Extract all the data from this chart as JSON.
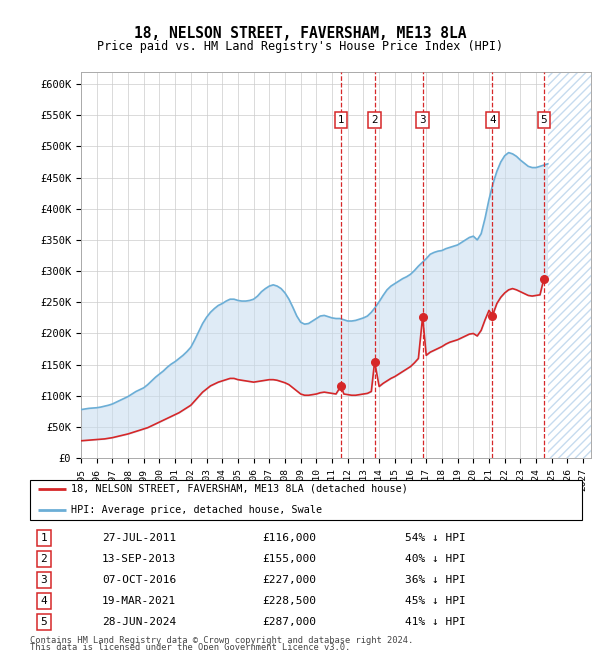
{
  "title": "18, NELSON STREET, FAVERSHAM, ME13 8LA",
  "subtitle": "Price paid vs. HM Land Registry's House Price Index (HPI)",
  "hpi_label": "HPI: Average price, detached house, Swale",
  "price_label": "18, NELSON STREET, FAVERSHAM, ME13 8LA (detached house)",
  "footer1": "Contains HM Land Registry data © Crown copyright and database right 2024.",
  "footer2": "This data is licensed under the Open Government Licence v3.0.",
  "hpi_color": "#6baed6",
  "price_color": "#d62728",
  "sale_marker_color": "#d62728",
  "sale_vline_color": "#d62728",
  "fill_color": "#c6dbef",
  "ylim": [
    0,
    620000
  ],
  "yticks": [
    0,
    50000,
    100000,
    150000,
    200000,
    250000,
    300000,
    350000,
    400000,
    450000,
    500000,
    550000,
    600000
  ],
  "ytick_labels": [
    "£0",
    "£50K",
    "£100K",
    "£150K",
    "£200K",
    "£250K",
    "£300K",
    "£350K",
    "£400K",
    "£450K",
    "£500K",
    "£550K",
    "£600K"
  ],
  "xlim_start": 1995.0,
  "xlim_end": 2027.5,
  "hatch_start": 2024.75,
  "sales": [
    {
      "num": 1,
      "date": 2011.57,
      "price": 116000,
      "label": "27-JUL-2011",
      "pct": "54% ↓ HPI"
    },
    {
      "num": 2,
      "date": 2013.71,
      "price": 155000,
      "label": "13-SEP-2013",
      "pct": "40% ↓ HPI"
    },
    {
      "num": 3,
      "date": 2016.77,
      "price": 227000,
      "label": "07-OCT-2016",
      "pct": "36% ↓ HPI"
    },
    {
      "num": 4,
      "date": 2021.22,
      "price": 228500,
      "label": "19-MAR-2021",
      "pct": "45% ↓ HPI"
    },
    {
      "num": 5,
      "date": 2024.49,
      "price": 287000,
      "label": "28-JUN-2024",
      "pct": "41% ↓ HPI"
    }
  ],
  "hpi_data": {
    "years": [
      1995.0,
      1995.25,
      1995.5,
      1995.75,
      1996.0,
      1996.25,
      1996.5,
      1996.75,
      1997.0,
      1997.25,
      1997.5,
      1997.75,
      1998.0,
      1998.25,
      1998.5,
      1998.75,
      1999.0,
      1999.25,
      1999.5,
      1999.75,
      2000.0,
      2000.25,
      2000.5,
      2000.75,
      2001.0,
      2001.25,
      2001.5,
      2001.75,
      2002.0,
      2002.25,
      2002.5,
      2002.75,
      2003.0,
      2003.25,
      2003.5,
      2003.75,
      2004.0,
      2004.25,
      2004.5,
      2004.75,
      2005.0,
      2005.25,
      2005.5,
      2005.75,
      2006.0,
      2006.25,
      2006.5,
      2006.75,
      2007.0,
      2007.25,
      2007.5,
      2007.75,
      2008.0,
      2008.25,
      2008.5,
      2008.75,
      2009.0,
      2009.25,
      2009.5,
      2009.75,
      2010.0,
      2010.25,
      2010.5,
      2010.75,
      2011.0,
      2011.25,
      2011.5,
      2011.75,
      2012.0,
      2012.25,
      2012.5,
      2012.75,
      2013.0,
      2013.25,
      2013.5,
      2013.75,
      2014.0,
      2014.25,
      2014.5,
      2014.75,
      2015.0,
      2015.25,
      2015.5,
      2015.75,
      2016.0,
      2016.25,
      2016.5,
      2016.75,
      2017.0,
      2017.25,
      2017.5,
      2017.75,
      2018.0,
      2018.25,
      2018.5,
      2018.75,
      2019.0,
      2019.25,
      2019.5,
      2019.75,
      2020.0,
      2020.25,
      2020.5,
      2020.75,
      2021.0,
      2021.25,
      2021.5,
      2021.75,
      2022.0,
      2022.25,
      2022.5,
      2022.75,
      2023.0,
      2023.25,
      2023.5,
      2023.75,
      2024.0,
      2024.25,
      2024.5,
      2024.75
    ],
    "values": [
      78000,
      79000,
      80000,
      80500,
      81000,
      82000,
      83500,
      85000,
      87000,
      90000,
      93000,
      96000,
      99000,
      103000,
      107000,
      110000,
      113000,
      118000,
      124000,
      130000,
      135000,
      140000,
      146000,
      151000,
      155000,
      160000,
      165000,
      171000,
      178000,
      190000,
      203000,
      216000,
      226000,
      234000,
      240000,
      245000,
      248000,
      252000,
      255000,
      255000,
      253000,
      252000,
      252000,
      253000,
      255000,
      260000,
      267000,
      272000,
      276000,
      278000,
      276000,
      272000,
      265000,
      255000,
      242000,
      228000,
      218000,
      215000,
      216000,
      220000,
      224000,
      228000,
      229000,
      227000,
      225000,
      224000,
      224000,
      222000,
      220000,
      220000,
      221000,
      223000,
      225000,
      228000,
      234000,
      242000,
      251000,
      261000,
      270000,
      276000,
      280000,
      284000,
      288000,
      291000,
      295000,
      301000,
      308000,
      314000,
      320000,
      327000,
      330000,
      332000,
      333000,
      336000,
      338000,
      340000,
      342000,
      346000,
      350000,
      354000,
      356000,
      350000,
      360000,
      385000,
      415000,
      440000,
      460000,
      475000,
      485000,
      490000,
      488000,
      484000,
      478000,
      473000,
      468000,
      466000,
      466000,
      468000,
      470000,
      472000
    ]
  },
  "price_data": {
    "years": [
      1995.0,
      1995.25,
      1995.5,
      1995.75,
      1996.0,
      1996.25,
      1996.5,
      1996.75,
      1997.0,
      1997.25,
      1997.5,
      1997.75,
      1998.0,
      1998.25,
      1998.5,
      1998.75,
      1999.0,
      1999.25,
      1999.5,
      1999.75,
      2000.0,
      2000.25,
      2000.5,
      2000.75,
      2001.0,
      2001.25,
      2001.5,
      2001.75,
      2002.0,
      2002.25,
      2002.5,
      2002.75,
      2003.0,
      2003.25,
      2003.5,
      2003.75,
      2004.0,
      2004.25,
      2004.5,
      2004.75,
      2005.0,
      2005.25,
      2005.5,
      2005.75,
      2006.0,
      2006.25,
      2006.5,
      2006.75,
      2007.0,
      2007.25,
      2007.5,
      2007.75,
      2008.0,
      2008.25,
      2008.5,
      2008.75,
      2009.0,
      2009.25,
      2009.5,
      2009.75,
      2010.0,
      2010.25,
      2010.5,
      2010.75,
      2011.0,
      2011.25,
      2011.57,
      2011.75,
      2012.0,
      2012.25,
      2012.5,
      2012.75,
      2013.0,
      2013.25,
      2013.5,
      2013.71,
      2014.0,
      2014.25,
      2014.5,
      2014.75,
      2015.0,
      2015.25,
      2015.5,
      2015.75,
      2016.0,
      2016.25,
      2016.5,
      2016.77,
      2017.0,
      2017.25,
      2017.5,
      2017.75,
      2018.0,
      2018.25,
      2018.5,
      2018.75,
      2019.0,
      2019.25,
      2019.5,
      2019.75,
      2020.0,
      2020.25,
      2020.5,
      2020.75,
      2021.0,
      2021.22,
      2021.5,
      2021.75,
      2022.0,
      2022.25,
      2022.5,
      2022.75,
      2023.0,
      2023.25,
      2023.5,
      2023.75,
      2024.0,
      2024.25,
      2024.49
    ],
    "values": [
      28000,
      28500,
      29000,
      29500,
      30000,
      30500,
      31000,
      32000,
      33000,
      34500,
      36000,
      37500,
      39000,
      41000,
      43000,
      45000,
      47000,
      49000,
      52000,
      55000,
      58000,
      61000,
      64000,
      67000,
      70000,
      73000,
      77000,
      81000,
      85000,
      92000,
      99000,
      106000,
      111000,
      116000,
      119000,
      122000,
      124000,
      126000,
      128000,
      128000,
      126000,
      125000,
      124000,
      123000,
      122000,
      123000,
      124000,
      125000,
      126000,
      126000,
      125000,
      123000,
      121000,
      118000,
      113000,
      108000,
      103000,
      101000,
      101000,
      102000,
      103000,
      105000,
      106000,
      105000,
      104000,
      103000,
      116000,
      103000,
      102000,
      101000,
      101000,
      102000,
      103000,
      104000,
      107000,
      155000,
      115000,
      120000,
      124000,
      128000,
      131000,
      135000,
      139000,
      143000,
      147000,
      153000,
      160000,
      227000,
      165000,
      170000,
      173000,
      176000,
      179000,
      183000,
      186000,
      188000,
      190000,
      193000,
      196000,
      199000,
      200000,
      196000,
      205000,
      222000,
      237000,
      228500,
      248000,
      258000,
      265000,
      270000,
      272000,
      270000,
      267000,
      264000,
      261000,
      260000,
      261000,
      262000,
      287000
    ]
  }
}
